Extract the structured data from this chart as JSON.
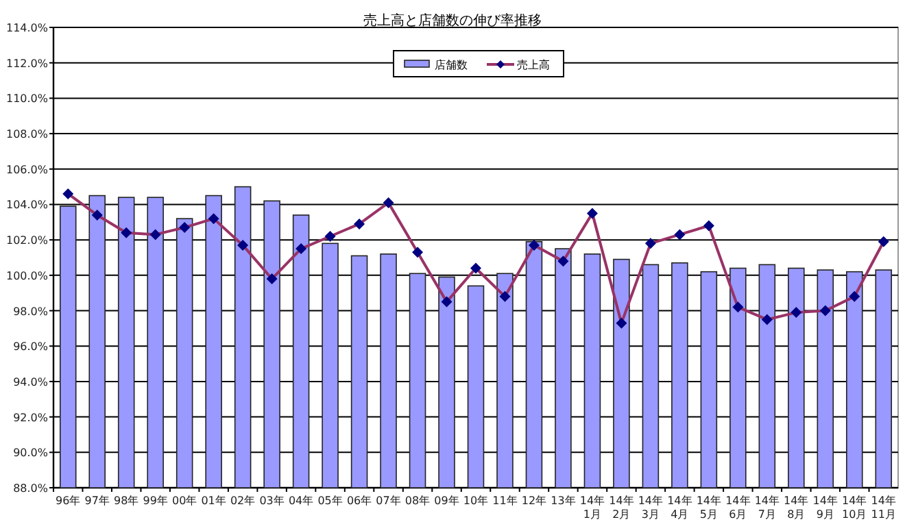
{
  "chart_data": {
    "type": "bar",
    "title": "売上高と店舗数の伸び率推移",
    "categories": [
      "96年",
      "97年",
      "98年",
      "99年",
      "00年",
      "01年",
      "02年",
      "03年",
      "04年",
      "05年",
      "06年",
      "07年",
      "08年",
      "09年",
      "10年",
      "11年",
      "12年",
      "13年",
      "14年\n1月",
      "14年\n2月",
      "14年\n3月",
      "14年\n4月",
      "14年\n5月",
      "14年\n6月",
      "14年\n7月",
      "14年\n8月",
      "14年\n9月",
      "14年\n10月",
      "14年\n11月"
    ],
    "series": [
      {
        "name": "店舗数",
        "color": "#9999ff",
        "values": [
          103.9,
          104.5,
          104.4,
          104.4,
          103.2,
          104.5,
          105.0,
          104.2,
          103.4,
          101.8,
          101.1,
          101.2,
          100.1,
          99.9,
          99.4,
          100.1,
          101.9,
          101.5,
          101.2,
          100.9,
          100.6,
          100.7,
          100.2,
          100.4,
          100.6,
          100.4,
          100.3,
          100.2,
          100.3
        ]
      },
      {
        "name": "売上高",
        "type": "line",
        "color": "#993366",
        "marker": "diamond",
        "values": [
          104.6,
          103.4,
          102.4,
          102.3,
          102.7,
          103.2,
          101.7,
          99.8,
          101.5,
          102.2,
          102.9,
          104.1,
          101.3,
          98.5,
          100.4,
          98.8,
          101.7,
          100.8,
          103.5,
          97.3,
          101.8,
          102.3,
          102.8,
          98.2,
          97.5,
          97.9,
          98.0,
          98.8,
          101.9
        ]
      }
    ],
    "ylim": [
      88,
      114
    ],
    "yticks": [
      {
        "value": 88,
        "label": "88.0%"
      },
      {
        "value": 90,
        "label": "90.0%"
      },
      {
        "value": 92,
        "label": "92.0%"
      },
      {
        "value": 94,
        "label": "94.0%"
      },
      {
        "value": 96,
        "label": "96.0%"
      },
      {
        "value": 98,
        "label": "98.0%"
      },
      {
        "value": 100,
        "label": "100.0%"
      },
      {
        "value": 102,
        "label": "102.0%"
      },
      {
        "value": 104,
        "label": "104.0%"
      },
      {
        "value": 106,
        "label": "106.0%"
      },
      {
        "value": 108,
        "label": "108.0%"
      },
      {
        "value": 110,
        "label": "110.0%"
      },
      {
        "value": 112,
        "label": "112.0%"
      },
      {
        "value": 114,
        "label": "114.0%"
      }
    ],
    "grid": "y",
    "legend": "top"
  }
}
